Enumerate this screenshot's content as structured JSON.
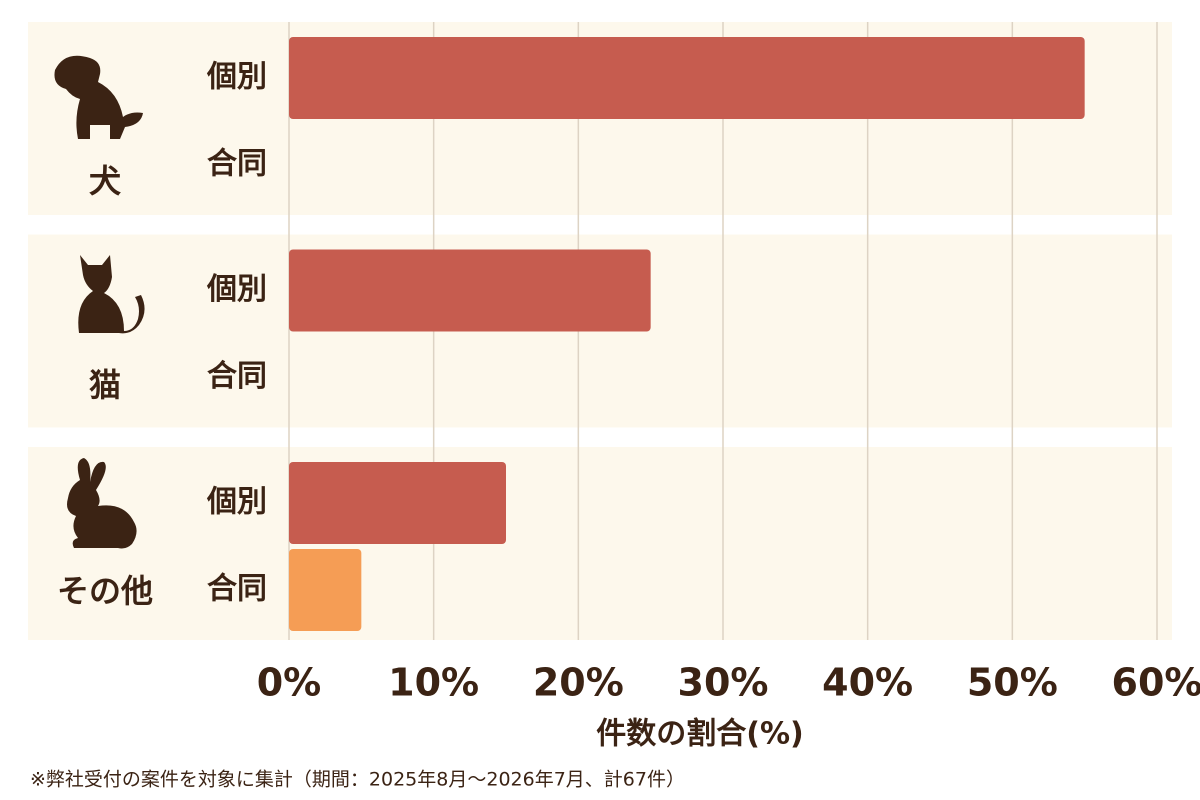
{
  "chart_data": {
    "type": "bar",
    "orientation": "horizontal",
    "categories": [
      "犬",
      "猫",
      "その他"
    ],
    "series": [
      {
        "name": "個別",
        "color": "#c65c4f",
        "values": [
          55,
          25,
          15
        ]
      },
      {
        "name": "合同",
        "color": "#f59d55",
        "values": [
          0,
          0,
          5
        ]
      }
    ],
    "xlim": [
      0,
      60
    ],
    "xticks": [
      {
        "value": 0,
        "label": "0%"
      },
      {
        "value": 10,
        "label": "10%"
      },
      {
        "value": 20,
        "label": "20%"
      },
      {
        "value": 30,
        "label": "30%"
      },
      {
        "value": 40,
        "label": "40%"
      },
      {
        "value": 50,
        "label": "50%"
      },
      {
        "value": 60,
        "label": "60%"
      }
    ],
    "grid": true,
    "xlabel": "件数の割合(%)",
    "note": "※弊社受付の案件を対象に集計（期間：2025年8月～2026年7月、計67件）"
  }
}
